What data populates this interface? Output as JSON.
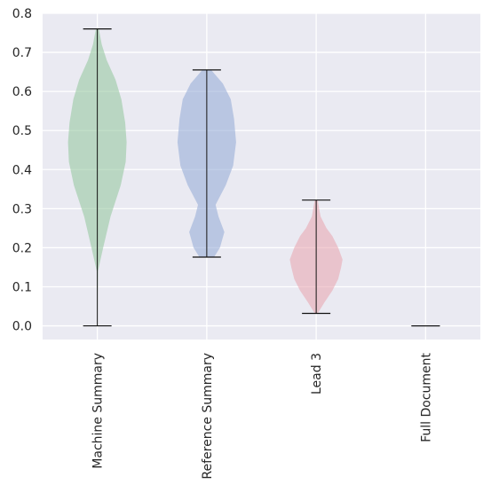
{
  "chart_data": {
    "type": "violin",
    "title": "",
    "xlabel": "",
    "ylabel": "",
    "ylim": [
      -0.035,
      0.8
    ],
    "yticks": [
      0.0,
      0.1,
      0.2,
      0.3,
      0.4,
      0.5,
      0.6,
      0.7,
      0.8
    ],
    "ytick_labels": [
      "0.0",
      "0.1",
      "0.2",
      "0.3",
      "0.4",
      "0.5",
      "0.6",
      "0.7",
      "0.8"
    ],
    "grid": true,
    "categories": [
      "Machine Summary",
      "Reference Summary",
      "Lead 3",
      "Full Document"
    ],
    "series": [
      {
        "category": "Machine Summary",
        "color": "#8fc59a",
        "min": 0.0,
        "max": 0.76,
        "density": [
          [
            0.0,
            0.0
          ],
          [
            0.14,
            0.02
          ],
          [
            0.2,
            0.2
          ],
          [
            0.28,
            0.45
          ],
          [
            0.36,
            0.8
          ],
          [
            0.42,
            0.97
          ],
          [
            0.47,
            1.0
          ],
          [
            0.52,
            0.95
          ],
          [
            0.58,
            0.82
          ],
          [
            0.63,
            0.62
          ],
          [
            0.68,
            0.32
          ],
          [
            0.72,
            0.15
          ],
          [
            0.76,
            0.05
          ]
        ]
      },
      {
        "category": "Reference Summary",
        "color": "#8fa8d6",
        "min": 0.176,
        "max": 0.655,
        "density": [
          [
            0.176,
            0.25
          ],
          [
            0.2,
            0.45
          ],
          [
            0.24,
            0.6
          ],
          [
            0.28,
            0.4
          ],
          [
            0.31,
            0.3
          ],
          [
            0.36,
            0.65
          ],
          [
            0.41,
            0.9
          ],
          [
            0.47,
            1.0
          ],
          [
            0.53,
            0.93
          ],
          [
            0.58,
            0.82
          ],
          [
            0.62,
            0.55
          ],
          [
            0.655,
            0.15
          ]
        ]
      },
      {
        "category": "Lead 3",
        "color": "#e8a3ad",
        "min": 0.032,
        "max": 0.322,
        "density": [
          [
            0.032,
            0.05
          ],
          [
            0.06,
            0.28
          ],
          [
            0.09,
            0.55
          ],
          [
            0.12,
            0.75
          ],
          [
            0.15,
            0.85
          ],
          [
            0.17,
            0.9
          ],
          [
            0.2,
            0.75
          ],
          [
            0.23,
            0.55
          ],
          [
            0.25,
            0.35
          ],
          [
            0.28,
            0.15
          ],
          [
            0.3,
            0.1
          ],
          [
            0.322,
            0.05
          ]
        ]
      },
      {
        "category": "Full Document",
        "color": "#b8b8b8",
        "min": 0.0,
        "max": 0.0,
        "density": []
      }
    ]
  }
}
